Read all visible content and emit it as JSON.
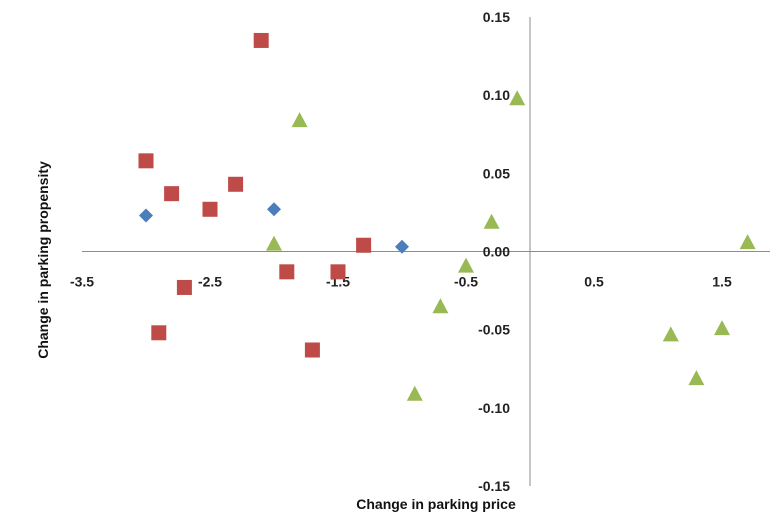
{
  "chart_data": {
    "type": "scatter",
    "title": "",
    "xlabel": "Change in parking price",
    "ylabel": "Change in parking propensity",
    "xlim": [
      -3.5,
      2.0
    ],
    "ylim": [
      -0.15,
      0.15
    ],
    "x_ticks": [
      {
        "value": -3.5,
        "label": "-3.5"
      },
      {
        "value": -2.5,
        "label": "-2.5"
      },
      {
        "value": -1.5,
        "label": "-1.5"
      },
      {
        "value": -0.5,
        "label": "-0.5"
      },
      {
        "value": 0.5,
        "label": "0.5"
      },
      {
        "value": 1.5,
        "label": "1.5"
      }
    ],
    "y_ticks": [
      {
        "value": 0.15,
        "label": "0.15"
      },
      {
        "value": 0.1,
        "label": "0.10"
      },
      {
        "value": 0.05,
        "label": "0.05"
      },
      {
        "value": 0.0,
        "label": "0.00"
      },
      {
        "value": -0.05,
        "label": "-0.05"
      },
      {
        "value": -0.1,
        "label": "-0.10"
      },
      {
        "value": -0.15,
        "label": "-0.15"
      }
    ],
    "grid": false,
    "series": [
      {
        "marker": "diamond",
        "color": "#4a7ebb",
        "points": [
          [
            -3.0,
            0.023
          ],
          [
            -2.0,
            0.027
          ],
          [
            -1.0,
            0.003
          ]
        ]
      },
      {
        "marker": "square",
        "color": "#be4b48",
        "points": [
          [
            -3.0,
            0.058
          ],
          [
            -2.9,
            -0.052
          ],
          [
            -2.8,
            0.037
          ],
          [
            -2.7,
            -0.023
          ],
          [
            -2.5,
            0.027
          ],
          [
            -2.3,
            0.043
          ],
          [
            -2.1,
            0.135
          ],
          [
            -1.9,
            -0.013
          ],
          [
            -1.7,
            -0.063
          ],
          [
            -1.5,
            -0.013
          ],
          [
            -1.3,
            0.004
          ]
        ]
      },
      {
        "marker": "triangle",
        "color": "#98b954",
        "points": [
          [
            -2.0,
            0.005
          ],
          [
            -1.8,
            0.084
          ],
          [
            -0.9,
            -0.091
          ],
          [
            -0.7,
            -0.035
          ],
          [
            -0.5,
            -0.009
          ],
          [
            -0.3,
            0.019
          ],
          [
            -0.1,
            0.098
          ],
          [
            1.1,
            -0.053
          ],
          [
            1.3,
            -0.081
          ],
          [
            1.5,
            -0.049
          ],
          [
            1.7,
            0.006
          ]
        ]
      }
    ]
  }
}
